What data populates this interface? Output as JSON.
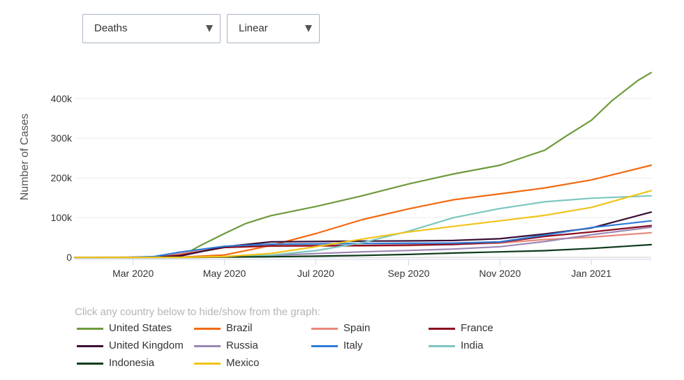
{
  "controls": {
    "metric_select": {
      "value": "Deaths"
    },
    "scale_select": {
      "value": "Linear"
    }
  },
  "legend_hint": "Click any country below to hide/show from the graph:",
  "chart_data": {
    "type": "line",
    "title": "",
    "xlabel": "",
    "ylabel": "Number of Cases",
    "x_ticks": [
      "Mar 2020",
      "May 2020",
      "Jul 2020",
      "Sep 2020",
      "Nov 2020",
      "Jan 2021"
    ],
    "y_ticks": [
      "0",
      "100k",
      "200k",
      "300k",
      "400k"
    ],
    "xlim": [
      "2020-01-22",
      "2021-02-10"
    ],
    "ylim": [
      -5000,
      490000
    ],
    "grid": "horizontal",
    "legend_position": "bottom",
    "series": [
      {
        "name": "United States",
        "color": "#6f9a3c",
        "points": [
          [
            "2020-01-22",
            0
          ],
          [
            "2020-03-15",
            100
          ],
          [
            "2020-04-05",
            9000
          ],
          [
            "2020-04-15",
            30000
          ],
          [
            "2020-05-01",
            60000
          ],
          [
            "2020-05-15",
            85000
          ],
          [
            "2020-06-01",
            105000
          ],
          [
            "2020-07-01",
            128000
          ],
          [
            "2020-08-01",
            155000
          ],
          [
            "2020-09-01",
            185000
          ],
          [
            "2020-10-01",
            210000
          ],
          [
            "2020-11-01",
            232000
          ],
          [
            "2020-12-01",
            270000
          ],
          [
            "2020-12-15",
            305000
          ],
          [
            "2021-01-01",
            345000
          ],
          [
            "2021-01-15",
            395000
          ],
          [
            "2021-02-01",
            445000
          ],
          [
            "2021-02-10",
            465000
          ]
        ]
      },
      {
        "name": "Brazil",
        "color": "#f26a10",
        "points": [
          [
            "2020-01-22",
            0
          ],
          [
            "2020-04-01",
            500
          ],
          [
            "2020-05-01",
            6000
          ],
          [
            "2020-06-01",
            30000
          ],
          [
            "2020-07-01",
            60000
          ],
          [
            "2020-08-01",
            95000
          ],
          [
            "2020-09-01",
            122000
          ],
          [
            "2020-10-01",
            145000
          ],
          [
            "2020-11-01",
            160000
          ],
          [
            "2020-12-01",
            175000
          ],
          [
            "2021-01-01",
            195000
          ],
          [
            "2021-02-10",
            232000
          ]
        ]
      },
      {
        "name": "Spain",
        "color": "#e8877a",
        "points": [
          [
            "2020-01-22",
            0
          ],
          [
            "2020-03-15",
            500
          ],
          [
            "2020-04-01",
            9000
          ],
          [
            "2020-05-01",
            25000
          ],
          [
            "2020-06-01",
            28000
          ],
          [
            "2020-08-01",
            29000
          ],
          [
            "2020-09-01",
            30000
          ],
          [
            "2020-10-01",
            33000
          ],
          [
            "2020-11-01",
            36000
          ],
          [
            "2020-12-01",
            45000
          ],
          [
            "2021-01-01",
            51000
          ],
          [
            "2021-02-10",
            62000
          ]
        ]
      },
      {
        "name": "France",
        "color": "#8b0a1e",
        "points": [
          [
            "2020-01-22",
            0
          ],
          [
            "2020-03-15",
            200
          ],
          [
            "2020-04-01",
            5000
          ],
          [
            "2020-05-01",
            25000
          ],
          [
            "2020-06-01",
            29000
          ],
          [
            "2020-08-01",
            30000
          ],
          [
            "2020-09-01",
            31000
          ],
          [
            "2020-10-01",
            32500
          ],
          [
            "2020-11-01",
            38000
          ],
          [
            "2020-12-01",
            53000
          ],
          [
            "2021-01-01",
            64000
          ],
          [
            "2021-02-10",
            80000
          ]
        ]
      },
      {
        "name": "United Kingdom",
        "color": "#3a0e36",
        "points": [
          [
            "2020-01-22",
            0
          ],
          [
            "2020-03-15",
            100
          ],
          [
            "2020-04-01",
            3000
          ],
          [
            "2020-05-01",
            27000
          ],
          [
            "2020-06-01",
            39000
          ],
          [
            "2020-08-01",
            41000
          ],
          [
            "2020-09-01",
            41500
          ],
          [
            "2020-10-01",
            42500
          ],
          [
            "2020-11-01",
            47000
          ],
          [
            "2020-12-01",
            59000
          ],
          [
            "2021-01-01",
            74000
          ],
          [
            "2021-02-10",
            114000
          ]
        ]
      },
      {
        "name": "Russia",
        "color": "#9b87b5",
        "points": [
          [
            "2020-01-22",
            0
          ],
          [
            "2020-04-15",
            100
          ],
          [
            "2020-05-01",
            1000
          ],
          [
            "2020-06-01",
            5000
          ],
          [
            "2020-07-01",
            9500
          ],
          [
            "2020-08-01",
            14000
          ],
          [
            "2020-09-01",
            17500
          ],
          [
            "2020-10-01",
            21000
          ],
          [
            "2020-11-01",
            27000
          ],
          [
            "2020-12-01",
            40000
          ],
          [
            "2021-01-01",
            57000
          ],
          [
            "2021-02-10",
            76000
          ]
        ]
      },
      {
        "name": "Italy",
        "color": "#2d7bd6",
        "points": [
          [
            "2020-01-22",
            0
          ],
          [
            "2020-02-25",
            100
          ],
          [
            "2020-03-15",
            2000
          ],
          [
            "2020-04-01",
            13000
          ],
          [
            "2020-05-01",
            28000
          ],
          [
            "2020-06-01",
            33500
          ],
          [
            "2020-08-01",
            35000
          ],
          [
            "2020-09-01",
            35500
          ],
          [
            "2020-10-01",
            36000
          ],
          [
            "2020-11-01",
            39000
          ],
          [
            "2020-12-01",
            56000
          ],
          [
            "2021-01-01",
            75000
          ],
          [
            "2021-02-10",
            92000
          ]
        ]
      },
      {
        "name": "India",
        "color": "#7cc7c0",
        "points": [
          [
            "2020-01-22",
            0
          ],
          [
            "2020-04-01",
            100
          ],
          [
            "2020-05-01",
            1200
          ],
          [
            "2020-06-01",
            5500
          ],
          [
            "2020-07-01",
            17000
          ],
          [
            "2020-08-01",
            37000
          ],
          [
            "2020-09-01",
            66000
          ],
          [
            "2020-10-01",
            100000
          ],
          [
            "2020-11-01",
            123000
          ],
          [
            "2020-12-01",
            140000
          ],
          [
            "2021-01-01",
            149000
          ],
          [
            "2021-02-10",
            155000
          ]
        ]
      },
      {
        "name": "Indonesia",
        "color": "#0e3b1c",
        "points": [
          [
            "2020-01-22",
            0
          ],
          [
            "2020-04-01",
            150
          ],
          [
            "2020-05-01",
            800
          ],
          [
            "2020-06-01",
            1700
          ],
          [
            "2020-07-01",
            3000
          ],
          [
            "2020-08-01",
            5000
          ],
          [
            "2020-09-01",
            7500
          ],
          [
            "2020-10-01",
            11000
          ],
          [
            "2020-11-01",
            14000
          ],
          [
            "2020-12-01",
            17000
          ],
          [
            "2021-01-01",
            22500
          ],
          [
            "2021-02-10",
            32000
          ]
        ]
      },
      {
        "name": "Mexico",
        "color": "#f0c419",
        "points": [
          [
            "2020-01-22",
            0
          ],
          [
            "2020-04-01",
            40
          ],
          [
            "2020-05-01",
            2000
          ],
          [
            "2020-06-01",
            10000
          ],
          [
            "2020-07-01",
            27000
          ],
          [
            "2020-08-01",
            46000
          ],
          [
            "2020-09-01",
            64000
          ],
          [
            "2020-10-01",
            78000
          ],
          [
            "2020-11-01",
            92000
          ],
          [
            "2020-12-01",
            106000
          ],
          [
            "2021-01-01",
            126000
          ],
          [
            "2021-02-10",
            168000
          ]
        ]
      }
    ]
  }
}
